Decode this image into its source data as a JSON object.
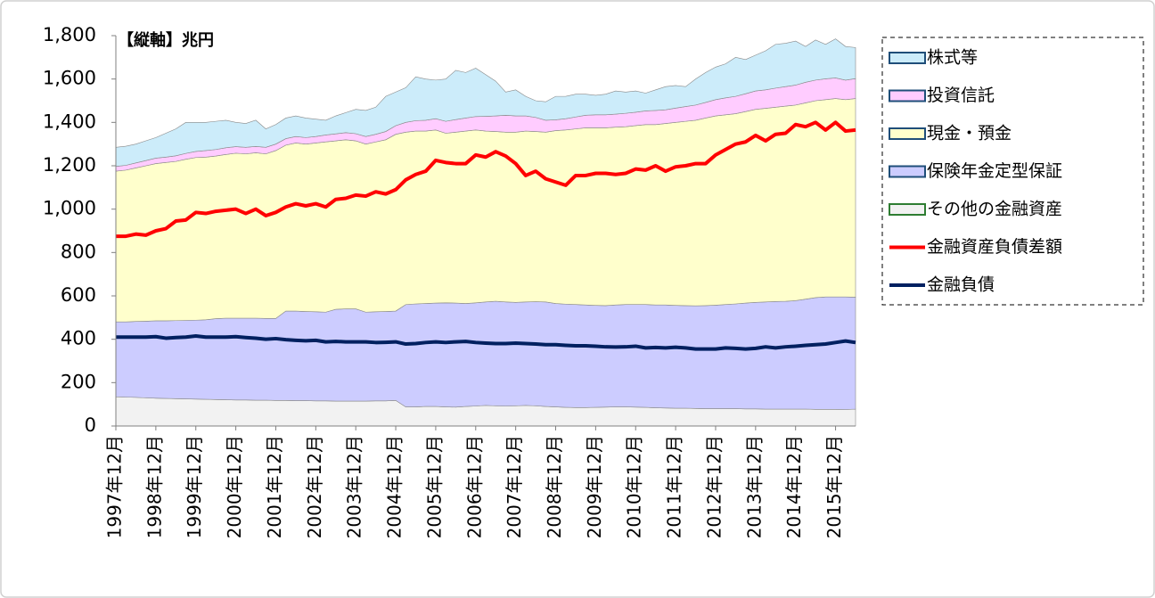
{
  "chart_data": {
    "type": "area",
    "y_label": "【縦軸】兆円",
    "categories": [
      "1997年12月",
      null,
      null,
      null,
      "1998年12月",
      null,
      null,
      null,
      "1999年12月",
      null,
      null,
      null,
      "2000年12月",
      null,
      null,
      null,
      "2001年12月",
      null,
      null,
      null,
      "2002年12月",
      null,
      null,
      null,
      "2003年12月",
      null,
      null,
      null,
      "2004年12月",
      null,
      null,
      null,
      "2005年12月",
      null,
      null,
      null,
      "2006年12月",
      null,
      null,
      null,
      "2007年12月",
      null,
      null,
      null,
      "2008年12月",
      null,
      null,
      null,
      "2009年12月",
      null,
      null,
      null,
      "2010年12月",
      null,
      null,
      null,
      "2011年12月",
      null,
      null,
      null,
      "2012年12月",
      null,
      null,
      null,
      "2013年12月",
      null,
      null,
      null,
      "2014年12月",
      null,
      null,
      null,
      "2015年12月",
      null,
      null
    ],
    "ylim": [
      0,
      1800
    ],
    "yticks": [
      0,
      200,
      400,
      600,
      800,
      {
        "value": 1000,
        "label": "1,000"
      },
      {
        "value": 1200,
        "label": "1,200"
      },
      {
        "value": 1400,
        "label": "1,400"
      },
      {
        "value": 1600,
        "label": "1,600"
      },
      {
        "value": 1800,
        "label": "1,800"
      }
    ],
    "stacked": true,
    "series": [
      {
        "name": "株式等",
        "type": "area",
        "color": "#ccecfa",
        "edge": "#1f4e79",
        "values": [
          88,
          88,
          87,
          91,
          95,
          110,
          124,
          143,
          134,
          130,
          130,
          127,
          112,
          110,
          121,
          85,
          90,
          95,
          95,
          90,
          80,
          68,
          83,
          92,
          112,
          120,
          125,
          162,
          155,
          160,
          202,
          190,
          178,
          195,
          227,
          210,
          223,
          192,
          160,
          107,
          120,
          90,
          77,
          85,
          108,
          103,
          105,
          97,
          90,
          95,
          107,
          98,
          98,
          82,
          95,
          107,
          104,
          92,
          120,
          138,
          150,
          157,
          180,
          158,
          165,
          180,
          202,
          200,
          203,
          165,
          185,
          159,
          180,
          155,
          143
        ]
      },
      {
        "name": "投資信託",
        "type": "area",
        "color": "#ffccff",
        "edge": "#1f4e79",
        "values": [
          22,
          22,
          23,
          24,
          25,
          25,
          26,
          27,
          28,
          30,
          30,
          31,
          30,
          30,
          29,
          30,
          30,
          30,
          30,
          30,
          30,
          32,
          32,
          33,
          33,
          35,
          35,
          38,
          40,
          45,
          48,
          50,
          52,
          55,
          58,
          60,
          62,
          68,
          72,
          78,
          75,
          70,
          65,
          55,
          50,
          52,
          55,
          58,
          60,
          60,
          60,
          62,
          62,
          63,
          65,
          63,
          66,
          68,
          70,
          72,
          75,
          78,
          80,
          82,
          85,
          85,
          88,
          90,
          92,
          95,
          95,
          96,
          95,
          90,
          92
        ]
      },
      {
        "name": "現金・預金",
        "type": "area",
        "color": "#ffffcc",
        "edge": "#1f4e79",
        "values": [
          695,
          700,
          708,
          717,
          725,
          730,
          734,
          743,
          750,
          750,
          750,
          755,
          761,
          758,
          763,
          759,
          774,
          765,
          775,
          772,
          778,
          785,
          777,
          780,
          775,
          775,
          783,
          792,
          815,
          795,
          797,
          795,
          798,
          782,
          788,
          795,
          797,
          788,
          783,
          783,
          785,
          788,
          785,
          783,
          797,
          803,
          810,
          817,
          819,
          820,
          820,
          820,
          825,
          830,
          832,
          837,
          844,
          850,
          856,
          865,
          873,
          875,
          877,
          883,
          890,
          893,
          896,
          900,
          902,
          905,
          908,
          910,
          915,
          910,
          916
        ]
      },
      {
        "name": "保険年金定型保証",
        "type": "area",
        "color": "#ccccff",
        "edge": "#1f4e79",
        "values": [
          345,
          347,
          350,
          353,
          357,
          358,
          360,
          362,
          364,
          367,
          373,
          376,
          377,
          377,
          378,
          377,
          378,
          412,
          413,
          411,
          411,
          409,
          423,
          425,
          425,
          410,
          411,
          412,
          412,
          472,
          475,
          475,
          477,
          480,
          480,
          475,
          476,
          477,
          482,
          480,
          477,
          477,
          480,
          482,
          477,
          476,
          475,
          473,
          470,
          468,
          470,
          472,
          473,
          474,
          474,
          475,
          474,
          473,
          473,
          475,
          477,
          480,
          483,
          488,
          491,
          494,
          496,
          497,
          500,
          507,
          515,
          518,
          518,
          519,
          516
        ]
      },
      {
        "name": "その他の金融資産",
        "type": "area",
        "color": "#f2f2f2",
        "edge": "#2e7d32",
        "values": [
          135,
          133,
          132,
          130,
          128,
          127,
          126,
          125,
          124,
          123,
          122,
          121,
          120,
          120,
          119,
          119,
          118,
          118,
          117,
          117,
          116,
          116,
          115,
          115,
          115,
          115,
          116,
          116,
          118,
          88,
          88,
          90,
          90,
          88,
          87,
          90,
          92,
          95,
          93,
          92,
          93,
          95,
          93,
          90,
          88,
          86,
          85,
          85,
          86,
          87,
          88,
          88,
          87,
          86,
          84,
          83,
          82,
          82,
          81,
          80,
          80,
          80,
          80,
          79,
          79,
          78,
          78,
          78,
          78,
          78,
          77,
          77,
          77,
          76,
          78
        ]
      },
      {
        "name": "金融資産負債差額",
        "type": "line",
        "color": "#ff0000",
        "values": [
          875,
          875,
          885,
          880,
          900,
          910,
          945,
          950,
          985,
          980,
          990,
          995,
          1000,
          980,
          1000,
          970,
          985,
          1010,
          1025,
          1015,
          1025,
          1010,
          1045,
          1050,
          1065,
          1060,
          1080,
          1070,
          1090,
          1135,
          1160,
          1175,
          1225,
          1215,
          1210,
          1210,
          1250,
          1240,
          1265,
          1245,
          1210,
          1155,
          1175,
          1140,
          1125,
          1110,
          1155,
          1155,
          1165,
          1165,
          1160,
          1165,
          1185,
          1180,
          1200,
          1175,
          1195,
          1200,
          1210,
          1210,
          1250,
          1275,
          1300,
          1310,
          1340,
          1315,
          1345,
          1350,
          1390,
          1380,
          1400,
          1365,
          1400,
          1360,
          1365
        ]
      },
      {
        "name": "金融負債",
        "type": "line",
        "color": "#002060",
        "values": [
          410,
          410,
          410,
          410,
          412,
          405,
          408,
          410,
          415,
          410,
          410,
          410,
          412,
          408,
          405,
          400,
          403,
          398,
          395,
          393,
          395,
          388,
          390,
          388,
          388,
          388,
          385,
          386,
          388,
          378,
          380,
          385,
          388,
          385,
          388,
          390,
          385,
          382,
          380,
          380,
          382,
          380,
          378,
          375,
          375,
          372,
          370,
          370,
          368,
          365,
          364,
          365,
          368,
          360,
          362,
          360,
          363,
          360,
          355,
          355,
          355,
          360,
          358,
          355,
          358,
          365,
          360,
          365,
          368,
          372,
          375,
          378,
          385,
          392,
          385
        ]
      }
    ]
  }
}
